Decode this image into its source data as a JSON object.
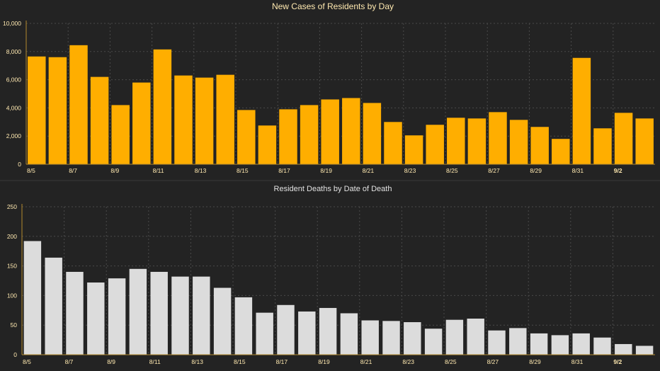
{
  "chart_data": [
    {
      "type": "bar",
      "title": "New Cases of Residents by Day",
      "categories": [
        "8/5",
        "8/6",
        "8/7",
        "8/8",
        "8/9",
        "8/10",
        "8/11",
        "8/12",
        "8/13",
        "8/14",
        "8/15",
        "8/16",
        "8/17",
        "8/18",
        "8/19",
        "8/20",
        "8/21",
        "8/22",
        "8/23",
        "8/24",
        "8/25",
        "8/26",
        "8/27",
        "8/28",
        "8/29",
        "8/30",
        "8/31",
        "9/1",
        "9/2",
        "9/3"
      ],
      "tick_labels": [
        "8/5",
        "",
        "8/7",
        "",
        "8/9",
        "",
        "8/11",
        "",
        "8/13",
        "",
        "8/15",
        "",
        "8/17",
        "",
        "8/19",
        "",
        "8/21",
        "",
        "8/23",
        "",
        "8/25",
        "",
        "8/27",
        "",
        "8/29",
        "",
        "8/31",
        "",
        "9/2",
        ""
      ],
      "values": [
        7650,
        7600,
        8450,
        6200,
        4200,
        5800,
        8150,
        6300,
        6150,
        6350,
        3850,
        2750,
        3900,
        4200,
        4600,
        4700,
        4350,
        3000,
        2050,
        2800,
        3300,
        3250,
        3700,
        3150,
        2650,
        1800,
        7550,
        2550,
        3650,
        3250
      ],
      "ylim": [
        0,
        10000
      ],
      "yticks": [
        "0",
        "2,000",
        "4,000",
        "6,000",
        "8,000",
        "10,000"
      ],
      "grid": true,
      "colors": {
        "bar": "#ffae00",
        "title": "#ffe9b0",
        "tick": "#ffe9b0",
        "axis": "#b38a2e",
        "grid": "#4a4a4a"
      }
    },
    {
      "type": "bar",
      "title": "Resident Deaths by Date of Death",
      "categories": [
        "8/5",
        "8/6",
        "8/7",
        "8/8",
        "8/9",
        "8/10",
        "8/11",
        "8/12",
        "8/13",
        "8/14",
        "8/15",
        "8/16",
        "8/17",
        "8/18",
        "8/19",
        "8/20",
        "8/21",
        "8/22",
        "8/23",
        "8/24",
        "8/25",
        "8/26",
        "8/27",
        "8/28",
        "8/29",
        "8/30",
        "8/31",
        "9/1",
        "9/2",
        "9/3"
      ],
      "tick_labels": [
        "8/5",
        "",
        "8/7",
        "",
        "8/9",
        "",
        "8/11",
        "",
        "8/13",
        "",
        "8/15",
        "",
        "8/17",
        "",
        "8/19",
        "",
        "8/21",
        "",
        "8/23",
        "",
        "8/25",
        "",
        "8/27",
        "",
        "8/29",
        "",
        "8/31",
        "",
        "9/2",
        ""
      ],
      "values": [
        192,
        164,
        140,
        122,
        129,
        145,
        140,
        132,
        132,
        113,
        97,
        71,
        84,
        73,
        79,
        70,
        58,
        57,
        55,
        44,
        59,
        61,
        41,
        45,
        36,
        33,
        36,
        29,
        18,
        15
      ],
      "ylim": [
        0,
        250
      ],
      "yticks": [
        "0",
        "50",
        "100",
        "150",
        "200",
        "250"
      ],
      "grid": true,
      "colors": {
        "bar": "#dcdcdc",
        "title": "#e2e2e2",
        "tick": "#ffe9b0",
        "axis": "#b38a2e",
        "grid": "#4a4a4a"
      }
    }
  ]
}
